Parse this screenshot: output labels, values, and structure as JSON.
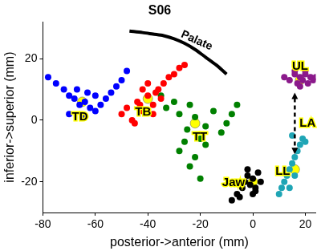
{
  "chart_data": {
    "type": "scatter",
    "title": "S06",
    "x_label": "posterior->anterior (mm)",
    "y_label": "inferior->superior (mm)",
    "xlim": [
      -80,
      24
    ],
    "ylim": [
      -30,
      32
    ],
    "xticks": [
      -80,
      -60,
      -40,
      -20,
      0,
      20
    ],
    "yticks": [
      -20,
      0,
      20
    ],
    "grid": false,
    "series": [
      {
        "name": "TD",
        "color": "#0000ff",
        "x": [
          -78,
          -75,
          -72,
          -70,
          -68,
          -66,
          -64,
          -62,
          -60,
          -58,
          -56,
          -54,
          -52,
          -50,
          -48,
          -70,
          -65,
          -60,
          -67,
          -63
        ],
        "y": [
          14,
          12,
          10,
          8,
          7,
          5,
          6,
          4,
          3,
          5,
          7,
          9,
          11,
          13,
          16,
          2,
          1,
          8,
          10,
          9
        ],
        "mean": [
          -65,
          6
        ]
      },
      {
        "name": "TB",
        "color": "#ff0000",
        "x": [
          -50,
          -48,
          -46,
          -44,
          -42,
          -40,
          -38,
          -36,
          -34,
          -32,
          -30,
          -28,
          -26,
          -45,
          -42,
          -38,
          -35,
          -40,
          -43,
          -37
        ],
        "y": [
          2,
          4,
          0,
          6,
          3,
          8,
          5,
          10,
          12,
          14,
          15,
          17,
          18,
          -1,
          10,
          2,
          7,
          12,
          5,
          9
        ],
        "mean": [
          -40,
          7
        ]
      },
      {
        "name": "TT",
        "color": "#008000",
        "x": [
          -35,
          -33,
          -30,
          -28,
          -25,
          -22,
          -20,
          -18,
          -15,
          -12,
          -10,
          -8,
          -6,
          -28,
          -24,
          -20,
          -26,
          -22,
          -24,
          -18
        ],
        "y": [
          8,
          4,
          6,
          2,
          -3,
          1,
          -6,
          -2,
          3,
          -4,
          -1,
          2,
          5,
          -10,
          -15,
          -19,
          -7,
          -12,
          5,
          -8
        ],
        "mean": [
          -22,
          -1
        ]
      },
      {
        "name": "Jaw",
        "color": "#000000",
        "x": [
          -8,
          -6,
          -4,
          -3,
          -2,
          -1,
          0,
          1,
          2,
          3,
          -5,
          -2,
          0,
          1
        ],
        "y": [
          -26,
          -24,
          -22,
          -20,
          -18,
          -21,
          -19,
          -23,
          -17,
          -20,
          -25,
          -16,
          -24,
          -22
        ],
        "mean": [
          0,
          -20
        ]
      },
      {
        "name": "UL",
        "color": "#8b1a8b",
        "x": [
          12,
          14,
          16,
          17,
          18,
          19,
          20,
          21,
          22,
          23,
          24,
          18,
          20,
          16
        ],
        "y": [
          14,
          13,
          15,
          12,
          14,
          13,
          15,
          12,
          14,
          13,
          14,
          11,
          16,
          16
        ],
        "mean": [
          18,
          13
        ]
      },
      {
        "name": "LL",
        "color": "#1fa5b5",
        "x": [
          10,
          11,
          12,
          13,
          14,
          15,
          16,
          17,
          18,
          19,
          20,
          14,
          16,
          15
        ],
        "y": [
          -24,
          -22,
          -20,
          -18,
          -16,
          -14,
          -12,
          -10,
          -8,
          -6,
          -7,
          -22,
          -18,
          -5
        ],
        "mean": [
          16,
          -16
        ]
      }
    ],
    "mean_color": "#ffff00",
    "palate": {
      "text": "Palate",
      "color": "#000000",
      "x": [
        -47,
        -42,
        -38,
        -34,
        -30,
        -26,
        -22,
        -18,
        -14,
        -10
      ],
      "y": [
        29,
        28.5,
        28,
        27.5,
        26.5,
        25,
        23,
        20.5,
        18,
        15
      ]
    },
    "arrow": {
      "text": "LA",
      "color": "#000000",
      "line_style": "dashed",
      "from": [
        16,
        9
      ],
      "to": [
        16,
        -11
      ]
    }
  }
}
